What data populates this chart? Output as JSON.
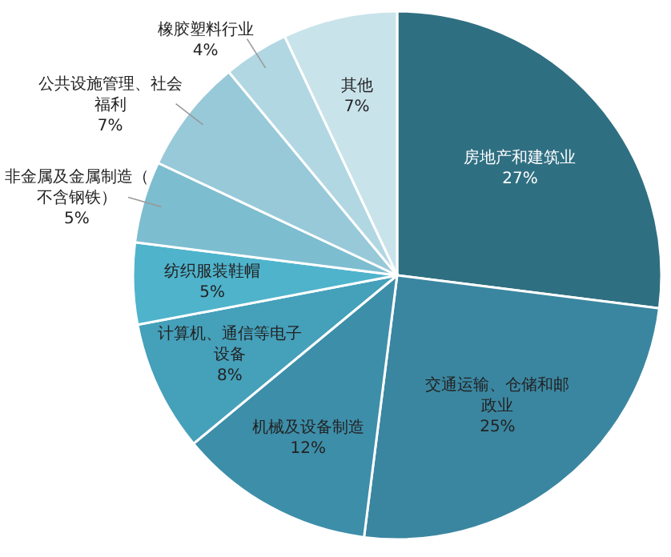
{
  "chart_data": {
    "type": "pie",
    "categories": [
      "房地产和建筑业",
      "交通运输、仓储和邮政业",
      "机械及设备制造",
      "计算机、通信等电子设备",
      "纺织服装鞋帽",
      "非金属及金属制造（不含钢铁）",
      "公共设施管理、社会福利",
      "橡胶塑料行业",
      "其他"
    ],
    "values": [
      27,
      25,
      12,
      8,
      5,
      5,
      7,
      4,
      7
    ],
    "value_labels": [
      "27%",
      "25%",
      "12%",
      "8%",
      "5%",
      "5%",
      "7%",
      "4%",
      "7%"
    ],
    "colors": [
      "#2f6f82",
      "#3a86a0",
      "#3d8ea9",
      "#45a0ba",
      "#4fb3cc",
      "#7dbdd0",
      "#97c9d9",
      "#b1d7e3",
      "#c9e3eb"
    ]
  }
}
